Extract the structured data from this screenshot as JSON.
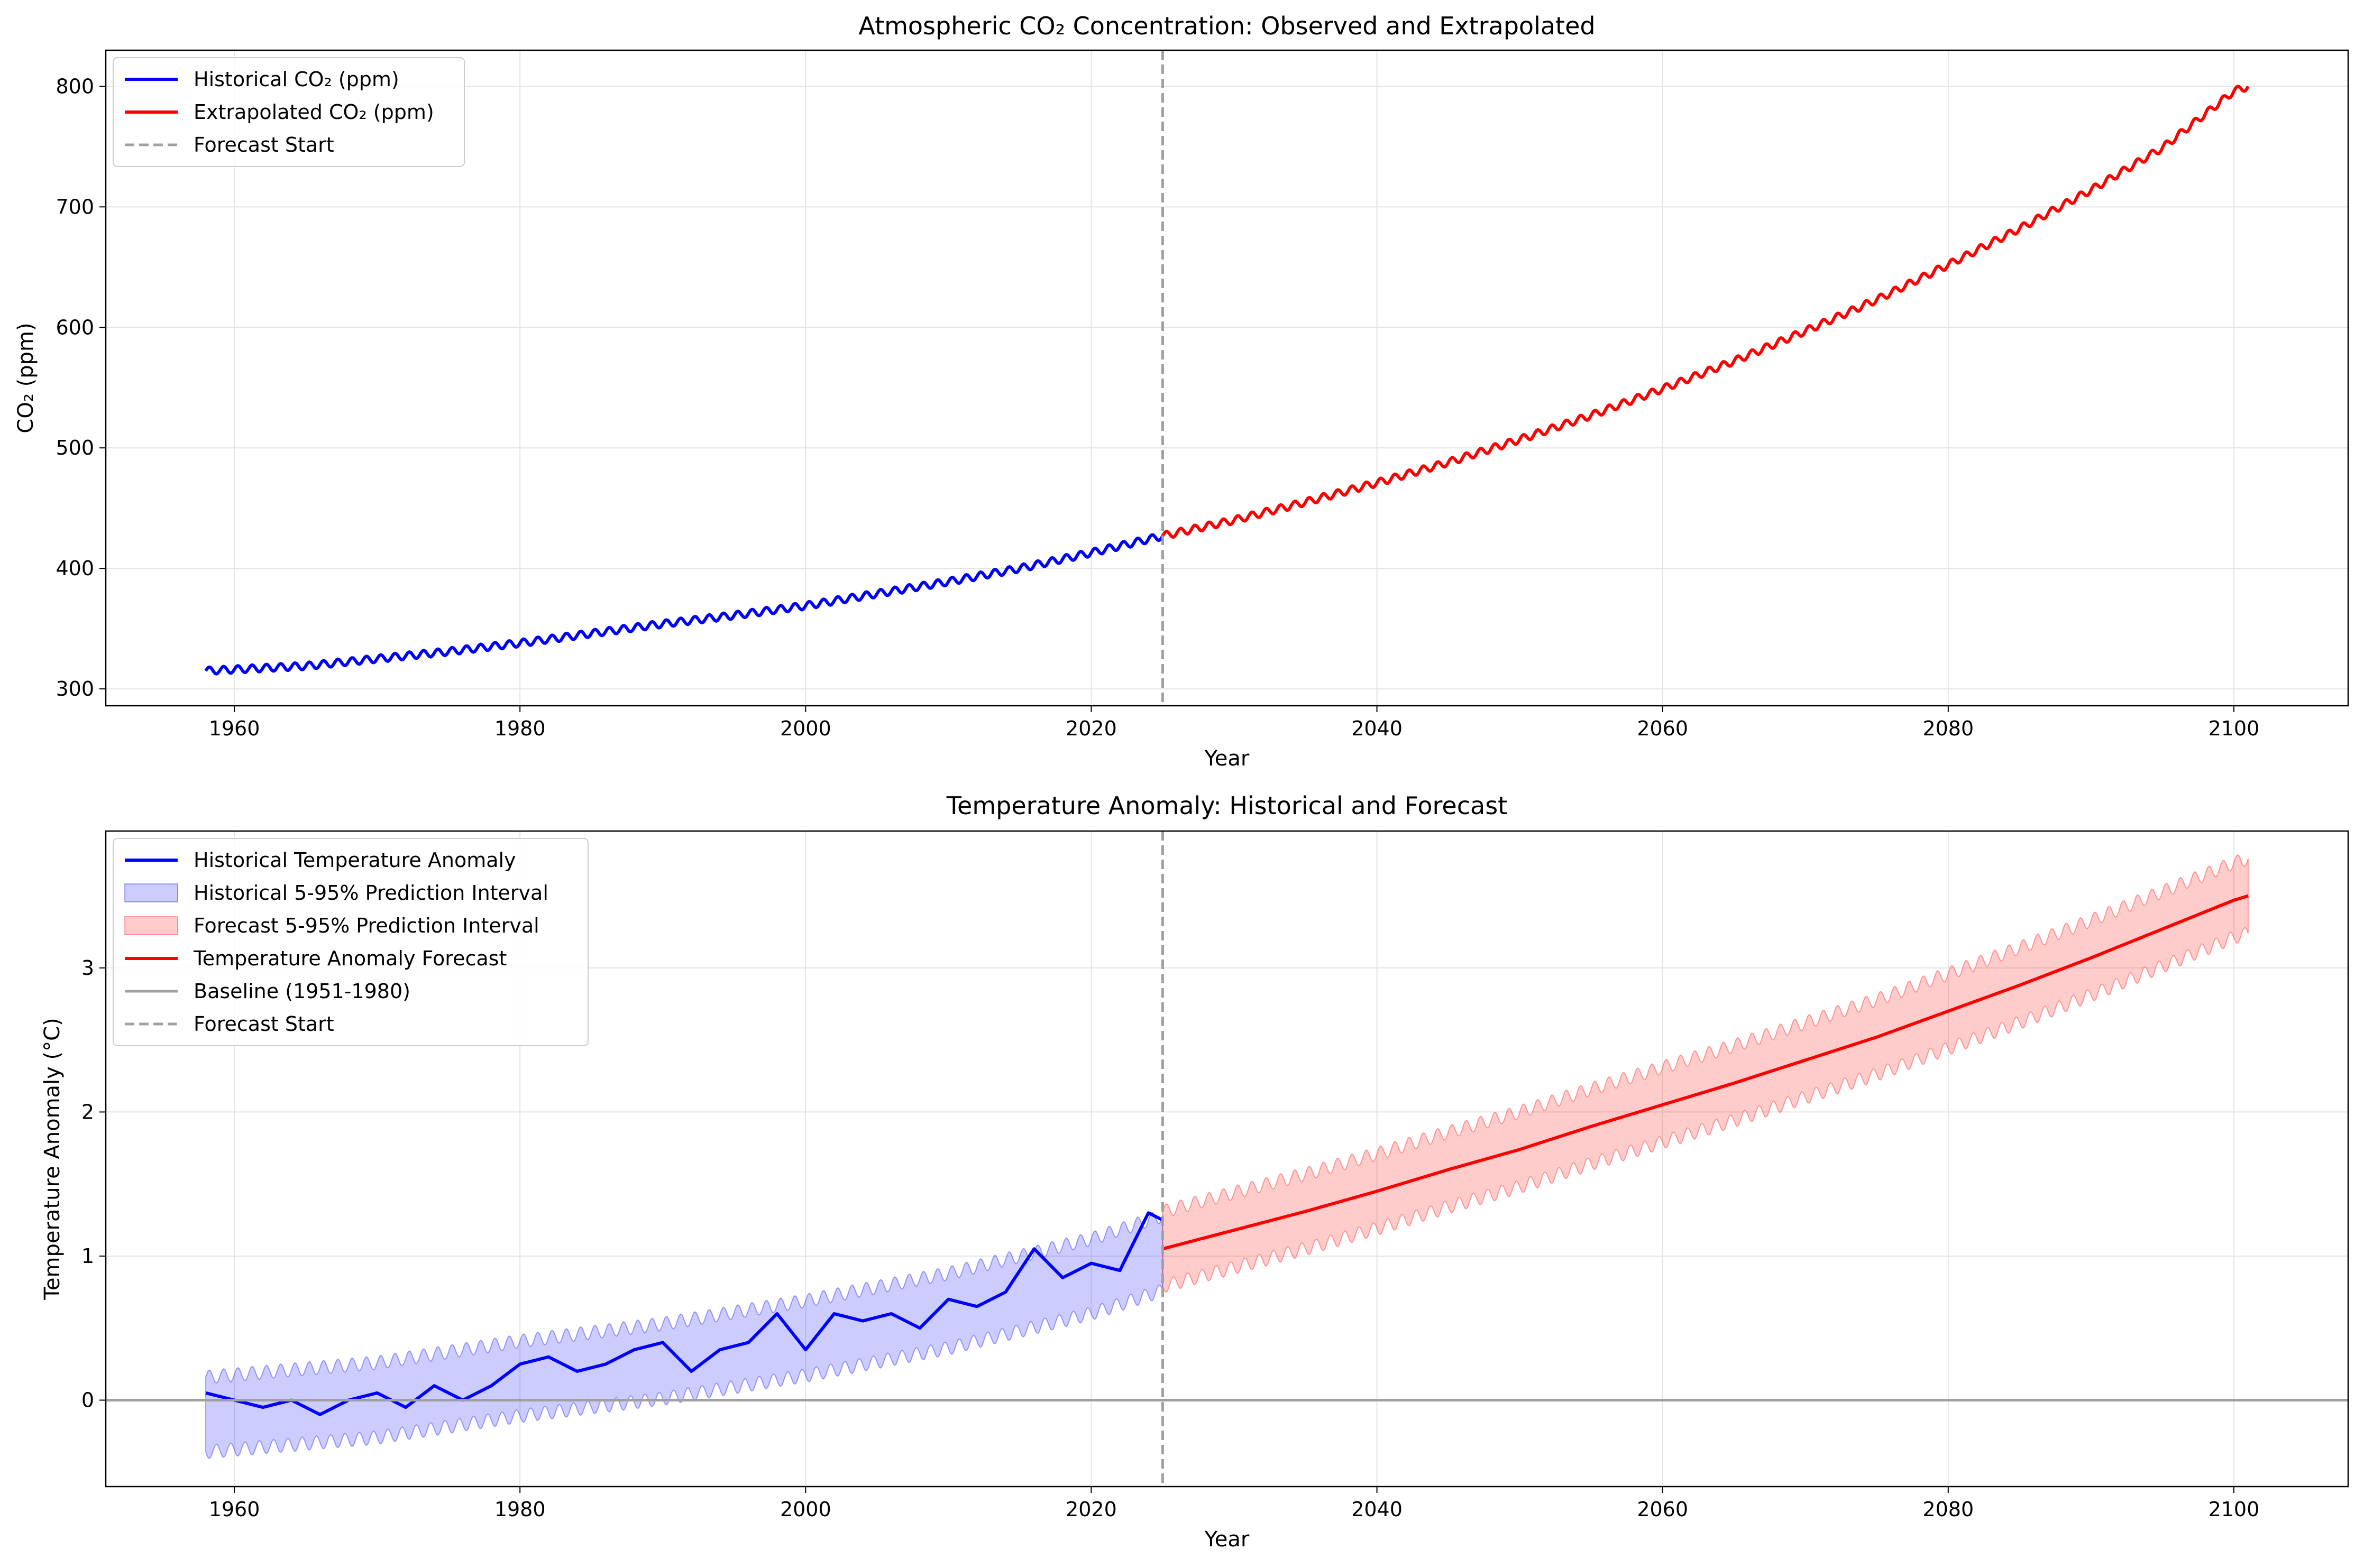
{
  "chart_data": [
    {
      "type": "line",
      "title": "Atmospheric CO₂ Concentration: Observed and Extrapolated",
      "xlabel": "Year",
      "ylabel": "CO₂ (ppm)",
      "xlim": [
        1951,
        2108
      ],
      "ylim": [
        286,
        830
      ],
      "xticks": [
        1960,
        1980,
        2000,
        2020,
        2040,
        2060,
        2080,
        2100
      ],
      "yticks": [
        300,
        400,
        500,
        600,
        700,
        800
      ],
      "grid": true,
      "legend_position": "upper left",
      "forecast_start": 2025,
      "series": [
        {
          "name": "Historical CO₂ (ppm)",
          "color": "#0000ff",
          "seasonal_amplitude": 3,
          "x": [
            1958,
            1965,
            1970,
            1975,
            1980,
            1985,
            1990,
            1995,
            2000,
            2005,
            2010,
            2015,
            2020,
            2025
          ],
          "y": [
            315,
            319,
            325,
            331,
            338,
            346,
            354,
            361,
            369,
            379,
            389,
            400,
            413,
            427
          ]
        },
        {
          "name": "Extrapolated CO₂ (ppm)",
          "color": "#ff0000",
          "seasonal_amplitude": 3,
          "x": [
            2025,
            2030,
            2035,
            2040,
            2045,
            2050,
            2055,
            2060,
            2065,
            2070,
            2075,
            2080,
            2085,
            2090,
            2095,
            2100,
            2101
          ],
          "y": [
            427,
            440,
            455,
            471,
            488,
            507,
            527,
            549,
            572,
            597,
            623,
            652,
            682,
            714,
            749,
            796,
            800
          ]
        }
      ],
      "legend": [
        "Historical CO₂ (ppm)",
        "Extrapolated CO₂ (ppm)",
        "Forecast Start"
      ]
    },
    {
      "type": "line",
      "title": "Temperature Anomaly: Historical and Forecast",
      "xlabel": "Year",
      "ylabel": "Temperature Anomaly (°C)",
      "xlim": [
        1951,
        2108
      ],
      "ylim": [
        -0.6,
        3.95
      ],
      "xticks": [
        1960,
        1980,
        2000,
        2020,
        2040,
        2060,
        2080,
        2100
      ],
      "yticks": [
        0,
        1,
        2,
        3
      ],
      "grid": true,
      "legend_position": "upper left",
      "forecast_start": 2025,
      "baseline_value": 0,
      "series": [
        {
          "name": "Historical Temperature Anomaly",
          "color": "#0000ff",
          "x": [
            1958,
            1960,
            1962,
            1964,
            1966,
            1968,
            1970,
            1972,
            1974,
            1976,
            1978,
            1980,
            1982,
            1984,
            1986,
            1988,
            1990,
            1992,
            1994,
            1996,
            1998,
            2000,
            2002,
            2004,
            2006,
            2008,
            2010,
            2012,
            2014,
            2016,
            2018,
            2020,
            2022,
            2024,
            2025
          ],
          "y": [
            0.05,
            0.0,
            -0.05,
            0.0,
            -0.1,
            0.0,
            0.05,
            -0.05,
            0.1,
            0.0,
            0.1,
            0.25,
            0.3,
            0.2,
            0.25,
            0.35,
            0.4,
            0.2,
            0.35,
            0.4,
            0.6,
            0.35,
            0.6,
            0.55,
            0.6,
            0.5,
            0.7,
            0.65,
            0.75,
            1.05,
            0.85,
            0.95,
            0.9,
            1.3,
            1.25
          ]
        },
        {
          "name": "Temperature Anomaly Forecast",
          "color": "#ff0000",
          "x": [
            2025,
            2030,
            2035,
            2040,
            2045,
            2050,
            2055,
            2060,
            2065,
            2070,
            2075,
            2080,
            2085,
            2090,
            2095,
            2100,
            2101
          ],
          "y": [
            1.05,
            1.18,
            1.31,
            1.45,
            1.6,
            1.74,
            1.9,
            2.05,
            2.2,
            2.36,
            2.52,
            2.7,
            2.88,
            3.07,
            3.27,
            3.47,
            3.5
          ]
        }
      ],
      "bands": [
        {
          "name": "Historical 5-95% Prediction Interval",
          "color": "#0000ff",
          "half_width": 0.26,
          "x": [
            1958,
            1970,
            1980,
            1990,
            2000,
            2010,
            2020,
            2025
          ],
          "center": [
            -0.1,
            0.0,
            0.15,
            0.27,
            0.43,
            0.62,
            0.86,
            1.02
          ]
        },
        {
          "name": "Forecast 5-95% Prediction Interval",
          "color": "#ff0000",
          "half_width": 0.26,
          "x": [
            2025,
            2030,
            2035,
            2040,
            2045,
            2050,
            2055,
            2060,
            2065,
            2070,
            2075,
            2080,
            2085,
            2090,
            2095,
            2100,
            2101
          ],
          "center": [
            1.05,
            1.18,
            1.31,
            1.45,
            1.6,
            1.74,
            1.9,
            2.05,
            2.2,
            2.36,
            2.52,
            2.7,
            2.88,
            3.07,
            3.27,
            3.47,
            3.5
          ]
        }
      ],
      "legend": [
        "Historical Temperature Anomaly",
        "Historical 5-95% Prediction Interval",
        "Forecast 5-95% Prediction Interval",
        "Temperature Anomaly Forecast",
        "Baseline (1951-1980)",
        "Forecast Start"
      ]
    }
  ]
}
